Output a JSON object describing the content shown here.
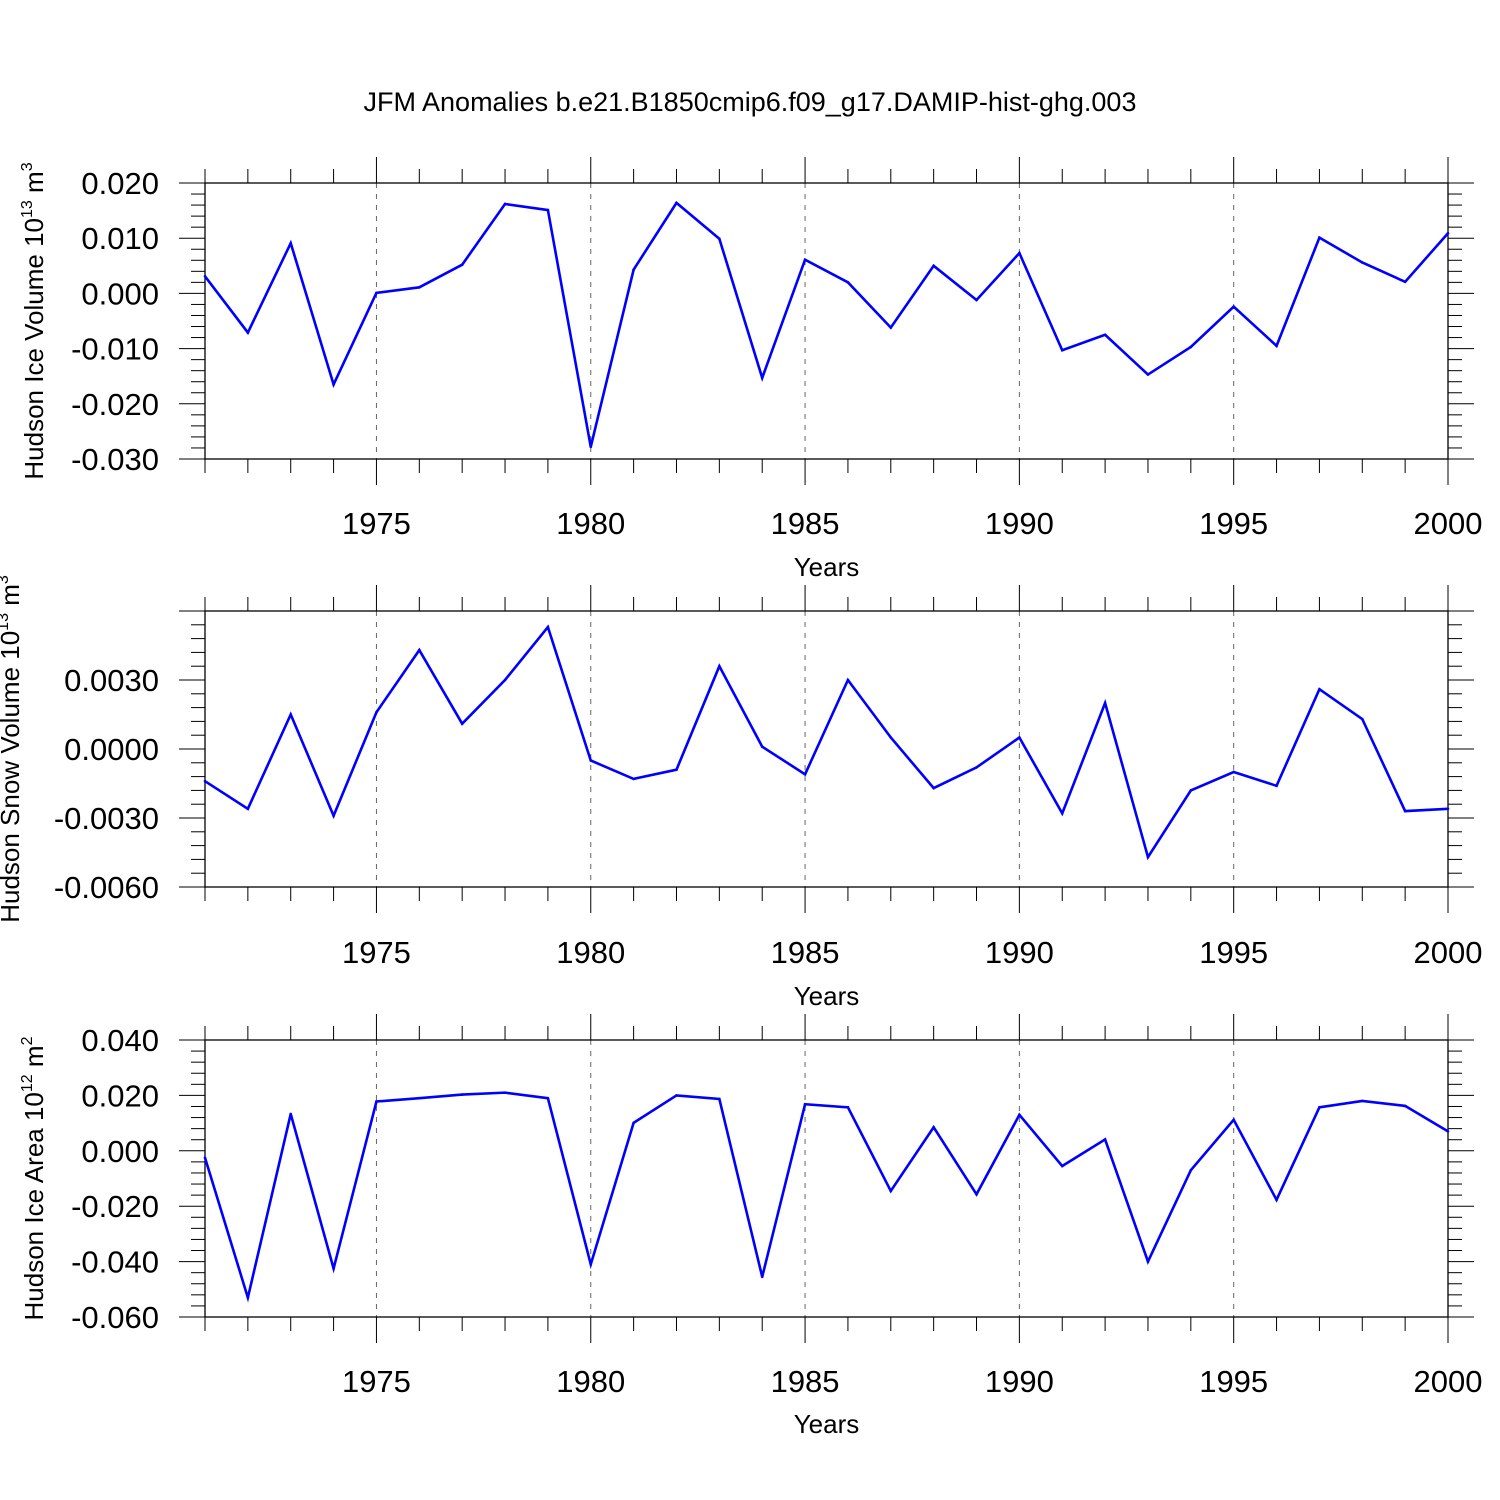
{
  "figure_title": "JFM Anomalies b.e21.B1850cmip6.f09_g17.DAMIP-hist-ghg.003",
  "line_color": "#0000ff",
  "chart_data": [
    {
      "type": "line",
      "ylabel": {
        "base": "Hudson Ice Volume 10",
        "exp": "13",
        "unit": " m",
        "unit_exp": "3"
      },
      "xlabel": "Years",
      "xlim": [
        1971,
        2000
      ],
      "ylim": [
        -0.03,
        0.02
      ],
      "yticks": [
        -0.03,
        -0.02,
        -0.01,
        0.0,
        0.01,
        0.02
      ],
      "yticklabels": [
        "-0.030",
        "-0.020",
        "-0.010",
        "0.000",
        "0.010",
        "0.020"
      ],
      "xticks": [
        1975,
        1980,
        1985,
        1990,
        1995,
        2000
      ],
      "xticklabels": [
        "1975",
        "1980",
        "1985",
        "1990",
        "1995",
        "2000"
      ],
      "x": [
        1971,
        1972,
        1973,
        1974,
        1975,
        1976,
        1977,
        1978,
        1979,
        1980,
        1981,
        1982,
        1983,
        1984,
        1985,
        1986,
        1987,
        1988,
        1989,
        1990,
        1991,
        1992,
        1993,
        1994,
        1995,
        1996,
        1997,
        1998,
        1999,
        2000
      ],
      "values": [
        0.0031,
        -0.0071,
        0.0091,
        -0.0165,
        0.0001,
        0.0011,
        0.0052,
        0.0162,
        0.0151,
        -0.0278,
        0.0043,
        0.0164,
        0.0099,
        -0.0153,
        0.0061,
        0.002,
        -0.0062,
        0.005,
        -0.0012,
        0.0073,
        -0.0103,
        -0.0075,
        -0.0147,
        -0.0097,
        -0.0024,
        -0.0095,
        0.0101,
        0.0056,
        0.0021,
        0.0109
      ]
    },
    {
      "type": "line",
      "ylabel": {
        "base": "Hudson Snow Volume 10",
        "exp": "13",
        "unit": " m",
        "unit_exp": "3"
      },
      "xlabel": "Years",
      "xlim": [
        1971,
        2000
      ],
      "ylim": [
        -0.006,
        0.006
      ],
      "yticks": [
        -0.006,
        -0.003,
        0.0,
        0.003
      ],
      "yticklabels": [
        "-0.0060",
        "-0.0030",
        "0.0000",
        "0.0030"
      ],
      "xticks": [
        1975,
        1980,
        1985,
        1990,
        1995,
        2000
      ],
      "xticklabels": [
        "1975",
        "1980",
        "1985",
        "1990",
        "1995",
        "2000"
      ],
      "x": [
        1971,
        1972,
        1973,
        1974,
        1975,
        1976,
        1977,
        1978,
        1979,
        1980,
        1981,
        1982,
        1983,
        1984,
        1985,
        1986,
        1987,
        1988,
        1989,
        1990,
        1991,
        1992,
        1993,
        1994,
        1995,
        1996,
        1997,
        1998,
        1999,
        2000
      ],
      "values": [
        -0.0014,
        -0.0026,
        0.0015,
        -0.0029,
        0.0016,
        0.0043,
        0.0011,
        0.003,
        0.0053,
        -0.0005,
        -0.0013,
        -0.0009,
        0.0036,
        0.0001,
        -0.0011,
        0.003,
        0.0005,
        -0.0017,
        -0.0008,
        0.0005,
        -0.0028,
        0.002,
        -0.0047,
        -0.0018,
        -0.001,
        -0.0016,
        0.0026,
        0.0013,
        -0.0027,
        -0.0026
      ]
    },
    {
      "type": "line",
      "ylabel": {
        "base": "Hudson Ice Area 10",
        "exp": "12",
        "unit": " m",
        "unit_exp": "2"
      },
      "xlabel": "Years",
      "xlim": [
        1971,
        2000
      ],
      "ylim": [
        -0.06,
        0.04
      ],
      "yticks": [
        -0.06,
        -0.04,
        -0.02,
        0.0,
        0.02,
        0.04
      ],
      "yticklabels": [
        "-0.060",
        "-0.040",
        "-0.020",
        "0.000",
        "0.020",
        "0.040"
      ],
      "xticks": [
        1975,
        1980,
        1985,
        1990,
        1995,
        2000
      ],
      "xticklabels": [
        "1975",
        "1980",
        "1985",
        "1990",
        "1995",
        "2000"
      ],
      "x": [
        1971,
        1972,
        1973,
        1974,
        1975,
        1976,
        1977,
        1978,
        1979,
        1980,
        1981,
        1982,
        1983,
        1984,
        1985,
        1986,
        1987,
        1988,
        1989,
        1990,
        1991,
        1992,
        1993,
        1994,
        1995,
        1996,
        1997,
        1998,
        1999,
        2000
      ],
      "values": [
        -0.0025,
        -0.053,
        0.0133,
        -0.0425,
        0.0178,
        0.019,
        0.0203,
        0.021,
        0.019,
        -0.041,
        0.0101,
        0.02,
        0.0187,
        -0.0455,
        0.0168,
        0.0157,
        -0.0145,
        0.0085,
        -0.0157,
        0.013,
        -0.0055,
        0.0041,
        -0.04,
        -0.007,
        0.0112,
        -0.0177,
        0.0157,
        0.018,
        0.0162,
        0.007
      ]
    }
  ]
}
